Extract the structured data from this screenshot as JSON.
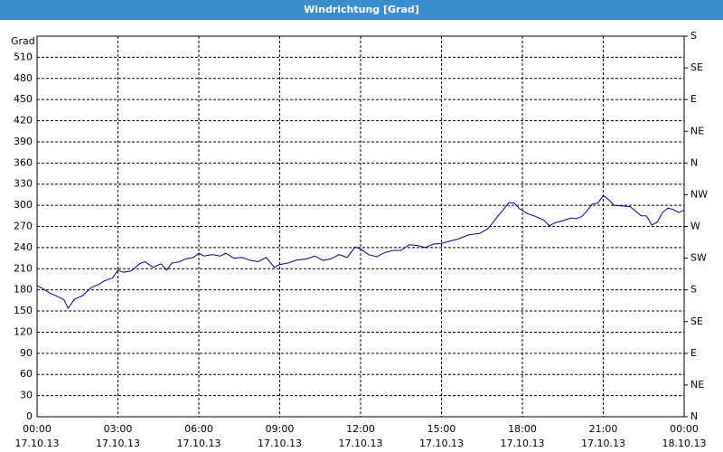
{
  "chart_data": {
    "type": "line",
    "title": "Windrichtung [Grad]",
    "ylabel": "Grad",
    "xlim": [
      0,
      24
    ],
    "xticks": [
      {
        "value": 0,
        "label": "00:00"
      },
      {
        "value": 3,
        "label": "03:00"
      },
      {
        "value": 6,
        "label": "06:00"
      },
      {
        "value": 9,
        "label": "09:00"
      },
      {
        "value": 12,
        "label": "12:00"
      },
      {
        "value": 15,
        "label": "15:00"
      },
      {
        "value": 18,
        "label": "18:00"
      },
      {
        "value": 21,
        "label": "21:00"
      },
      {
        "value": 24,
        "label": "00:00"
      }
    ],
    "xtick_dates": [
      "17.10.13",
      "17.10.13",
      "17.10.13",
      "17.10.13",
      "17.10.13",
      "17.10.13",
      "17.10.13",
      "17.10.13",
      "18.10.13"
    ],
    "ylim": [
      0,
      540
    ],
    "yticks": [
      0,
      30,
      60,
      90,
      120,
      150,
      180,
      210,
      240,
      270,
      300,
      330,
      360,
      390,
      420,
      450,
      480,
      510
    ],
    "y2lim": [
      0,
      540
    ],
    "y2ticks": [
      {
        "value": 0,
        "label": "N"
      },
      {
        "value": 45,
        "label": "NE"
      },
      {
        "value": 90,
        "label": "E"
      },
      {
        "value": 135,
        "label": "SE"
      },
      {
        "value": 180,
        "label": "S"
      },
      {
        "value": 225,
        "label": "SW"
      },
      {
        "value": 270,
        "label": "W"
      },
      {
        "value": 315,
        "label": "NW"
      },
      {
        "value": 360,
        "label": "N"
      },
      {
        "value": 405,
        "label": "NE"
      },
      {
        "value": 450,
        "label": "E"
      },
      {
        "value": 495,
        "label": "SE"
      },
      {
        "value": 540,
        "label": "S"
      }
    ],
    "grid": true,
    "x": [
      0,
      0.2,
      0.5,
      0.8,
      1.0,
      1.15,
      1.4,
      1.7,
      2.0,
      2.3,
      2.5,
      2.8,
      3.0,
      3.2,
      3.5,
      3.8,
      4.0,
      4.3,
      4.6,
      4.8,
      5.0,
      5.3,
      5.5,
      5.8,
      6.0,
      6.2,
      6.5,
      6.8,
      7.0,
      7.3,
      7.6,
      7.9,
      8.2,
      8.5,
      8.8,
      9.0,
      9.3,
      9.6,
      10.0,
      10.3,
      10.6,
      10.9,
      11.2,
      11.5,
      11.8,
      12.0,
      12.3,
      12.6,
      12.9,
      13.2,
      13.5,
      13.8,
      14.1,
      14.4,
      14.7,
      15.0,
      15.3,
      15.6,
      16.0,
      16.4,
      16.7,
      16.9,
      17.1,
      17.3,
      17.5,
      17.7,
      17.9,
      18.2,
      18.5,
      18.8,
      19.0,
      19.2,
      19.5,
      19.8,
      20.0,
      20.2,
      20.4,
      20.6,
      20.8,
      21.0,
      21.2,
      21.4,
      21.7,
      22.0,
      22.2,
      22.4,
      22.6,
      22.8,
      23.0,
      23.2,
      23.4,
      23.6,
      23.8,
      24.0
    ],
    "series": [
      {
        "color": "#00008b",
        "values": [
          186,
          182,
          175,
          170,
          166,
          154,
          167,
          172,
          183,
          188,
          193,
          197,
          208,
          205,
          207,
          217,
          220,
          212,
          217,
          208,
          218,
          220,
          224,
          226,
          232,
          228,
          230,
          228,
          232,
          225,
          226,
          222,
          220,
          226,
          212,
          216,
          218,
          222,
          224,
          228,
          222,
          224,
          230,
          226,
          241,
          238,
          230,
          227,
          233,
          236,
          236,
          244,
          243,
          240,
          245,
          246,
          249,
          252,
          258,
          260,
          266,
          275,
          285,
          294,
          304,
          303,
          295,
          288,
          284,
          279,
          271,
          275,
          278,
          282,
          281,
          284,
          292,
          302,
          303,
          314,
          308,
          300,
          299,
          298,
          292,
          285,
          285,
          272,
          276,
          290,
          296,
          294,
          290,
          293
        ]
      }
    ]
  }
}
